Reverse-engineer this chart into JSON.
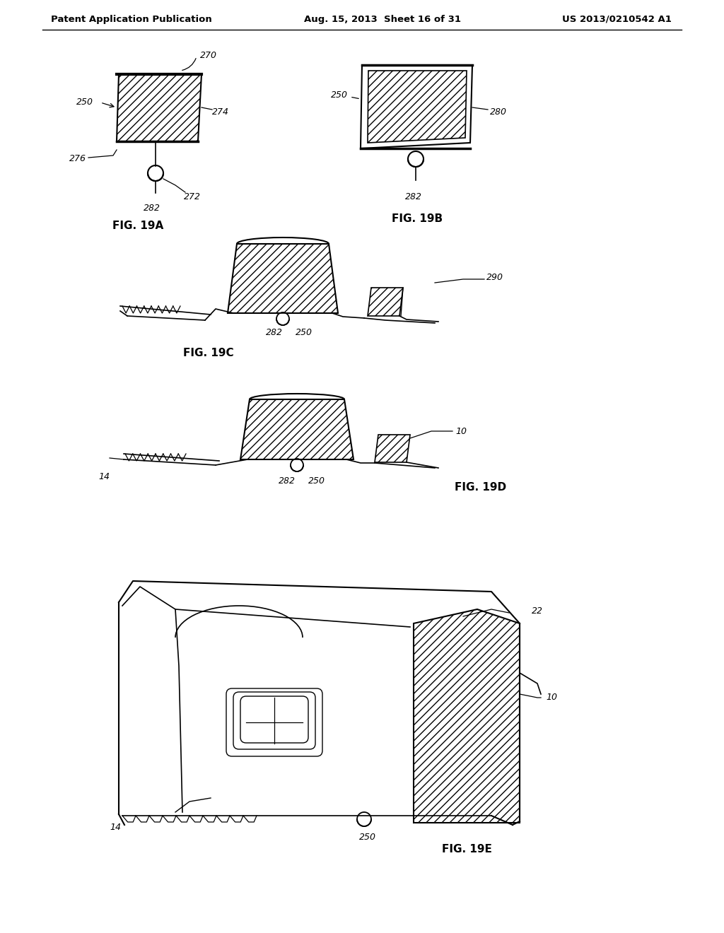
{
  "header_left": "Patent Application Publication",
  "header_mid": "Aug. 15, 2013  Sheet 16 of 31",
  "header_right": "US 2013/0210542 A1",
  "bg_color": "#ffffff"
}
